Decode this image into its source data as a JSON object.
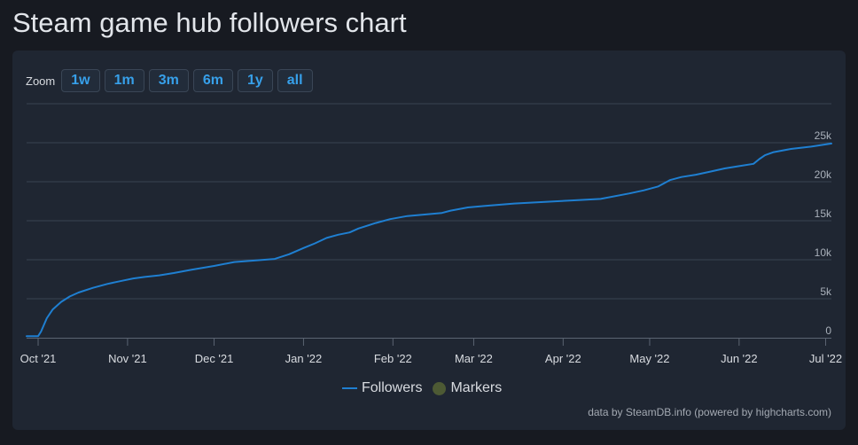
{
  "page": {
    "title": "Steam game hub followers chart"
  },
  "zoom": {
    "label": "Zoom",
    "buttons": [
      "1w",
      "1m",
      "3m",
      "6m",
      "1y",
      "all"
    ]
  },
  "legend": {
    "followers": "Followers",
    "markers": "Markers"
  },
  "credits": "data by SteamDB.info (powered by highcharts.com)",
  "colors": {
    "series": "#1f7fd1",
    "markers": "#4d5a34",
    "zoom_text": "#37a0ea"
  },
  "chart_data": {
    "type": "line",
    "title": "",
    "xlabel": "",
    "ylabel": "",
    "y_axis_side": "right",
    "ylim": [
      0,
      30000
    ],
    "yticks": [
      0,
      5000,
      10000,
      15000,
      20000,
      25000
    ],
    "ytick_labels": [
      "0",
      "5k",
      "10k",
      "15k",
      "20k",
      "25k"
    ],
    "xlim": [
      "2021-09-27",
      "2022-07-03"
    ],
    "xticks": [
      "2021-10-01",
      "2021-11-01",
      "2021-12-01",
      "2022-01-01",
      "2022-02-01",
      "2022-03-01",
      "2022-04-01",
      "2022-05-01",
      "2022-06-01",
      "2022-07-01"
    ],
    "xtick_labels": [
      "Oct '21",
      "Nov '21",
      "Dec '21",
      "Jan '22",
      "Feb '22",
      "Mar '22",
      "Apr '22",
      "May '22",
      "Jun '22",
      "Jul '22"
    ],
    "grid": true,
    "legend_position": "bottom-center",
    "series": [
      {
        "name": "Followers",
        "x": [
          "2021-09-27",
          "2021-10-01",
          "2021-10-02",
          "2021-10-04",
          "2021-10-06",
          "2021-10-09",
          "2021-10-12",
          "2021-10-15",
          "2021-10-20",
          "2021-10-25",
          "2021-10-30",
          "2021-11-03",
          "2021-11-07",
          "2021-11-12",
          "2021-11-17",
          "2021-11-23",
          "2021-12-01",
          "2021-12-08",
          "2021-12-15",
          "2021-12-22",
          "2021-12-27",
          "2022-01-01",
          "2022-01-05",
          "2022-01-09",
          "2022-01-13",
          "2022-01-17",
          "2022-01-20",
          "2022-01-26",
          "2022-01-31",
          "2022-02-06",
          "2022-02-12",
          "2022-02-18",
          "2022-02-21",
          "2022-02-27",
          "2022-03-05",
          "2022-03-15",
          "2022-03-25",
          "2022-04-04",
          "2022-04-14",
          "2022-04-24",
          "2022-04-29",
          "2022-05-04",
          "2022-05-07",
          "2022-05-08",
          "2022-05-12",
          "2022-05-17",
          "2022-05-22",
          "2022-05-27",
          "2022-06-01",
          "2022-06-06",
          "2022-06-08",
          "2022-06-10",
          "2022-06-13",
          "2022-06-19",
          "2022-06-26",
          "2022-07-03"
        ],
        "y": [
          200,
          200,
          800,
          2500,
          3600,
          4600,
          5300,
          5800,
          6400,
          6900,
          7300,
          7600,
          7800,
          8000,
          8300,
          8700,
          9200,
          9700,
          9900,
          10100,
          10700,
          11500,
          12100,
          12800,
          13200,
          13500,
          14000,
          14700,
          15200,
          15600,
          15800,
          16000,
          16300,
          16700,
          16900,
          17200,
          17400,
          17600,
          17800,
          18500,
          18900,
          19400,
          20000,
          20200,
          20600,
          20900,
          21300,
          21700,
          22000,
          22300,
          22900,
          23400,
          23800,
          24200,
          24500,
          24900
        ]
      }
    ]
  }
}
